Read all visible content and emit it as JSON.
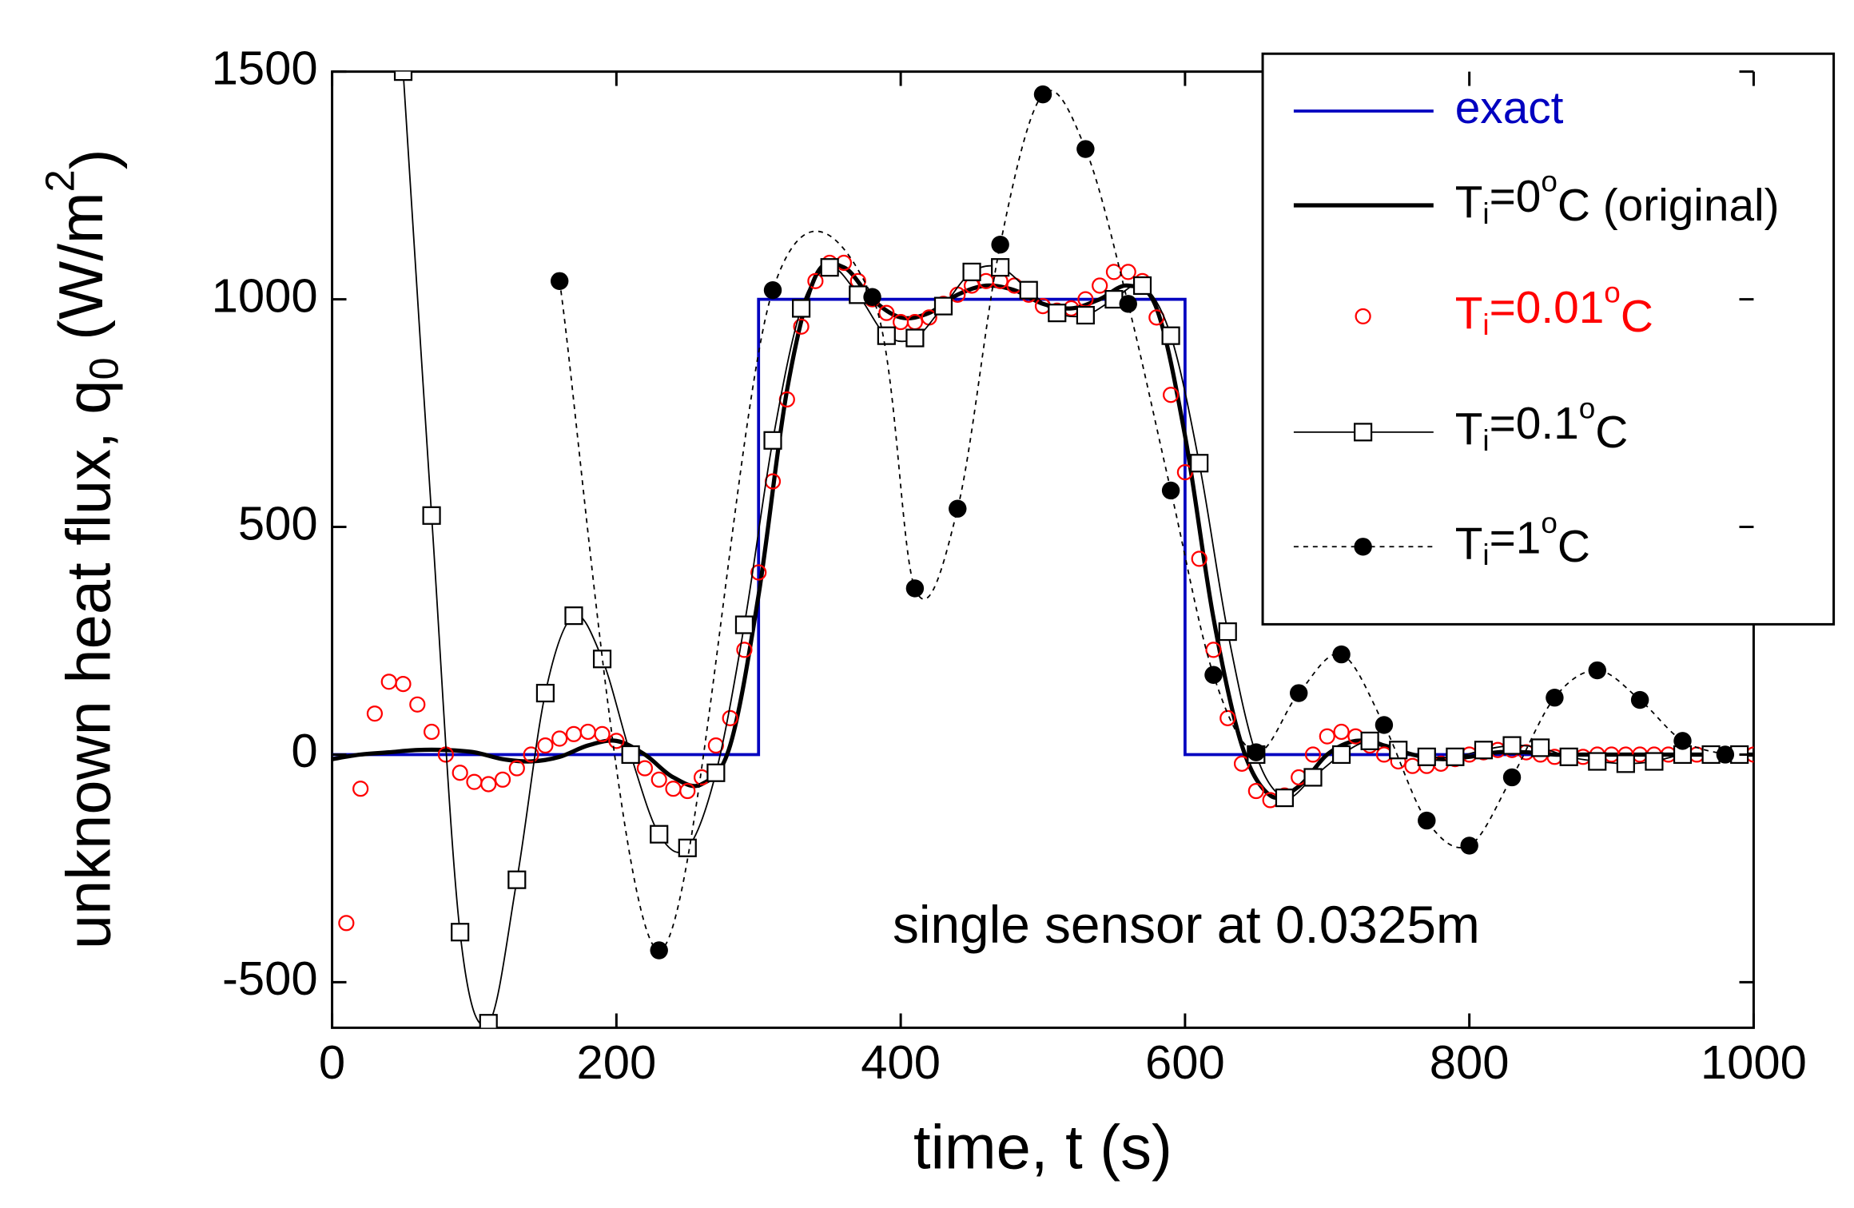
{
  "chart_data": {
    "type": "line",
    "xlabel": "time, t (s)",
    "ylabel": [
      "unknown heat flux, q",
      "0",
      " (W/m",
      "2",
      ")"
    ],
    "annotation": "single sensor  at 0.0325m",
    "xlim": [
      0,
      1000
    ],
    "xticks": [
      0,
      200,
      400,
      600,
      800,
      1000
    ],
    "ylim": [
      -600,
      1500
    ],
    "yticks": [
      -500,
      0,
      500,
      1000,
      1500
    ],
    "legend": "upper right",
    "series": [
      {
        "name": [
          "exact"
        ],
        "color": "#0000c0",
        "style": "step",
        "x": [
          0,
          300,
          300,
          600,
          600,
          1000
        ],
        "values": [
          0,
          0,
          1000,
          1000,
          0,
          0
        ]
      },
      {
        "name": [
          "T",
          "i",
          "=0",
          "o",
          "C (original)"
        ],
        "color": "#000000",
        "style": "thick",
        "x": [
          0,
          20,
          40,
          60,
          80,
          100,
          120,
          140,
          160,
          180,
          200,
          220,
          240,
          260,
          280,
          300,
          320,
          340,
          360,
          380,
          400,
          420,
          440,
          460,
          480,
          500,
          520,
          540,
          560,
          580,
          600,
          620,
          640,
          660,
          680,
          700,
          720,
          740,
          760,
          780,
          800,
          820,
          840,
          860,
          880,
          900,
          1000
        ],
        "values": [
          -10,
          0,
          5,
          10,
          10,
          5,
          -10,
          -15,
          -5,
          20,
          30,
          0,
          -50,
          -65,
          20,
          350,
          800,
          1050,
          1070,
          1000,
          960,
          970,
          1010,
          1030,
          1020,
          990,
          980,
          1000,
          1030,
          980,
          700,
          300,
          20,
          -90,
          -70,
          0,
          30,
          20,
          0,
          -10,
          -5,
          5,
          5,
          0,
          0,
          0,
          0
        ]
      },
      {
        "name": [
          "T",
          "i",
          "=0.01",
          "o",
          "C"
        ],
        "color": "#ff0000",
        "style": "circle",
        "x": [
          10,
          20,
          30,
          40,
          50,
          60,
          70,
          80,
          90,
          100,
          110,
          120,
          130,
          140,
          150,
          160,
          170,
          180,
          190,
          200,
          210,
          220,
          230,
          240,
          250,
          260,
          270,
          280,
          290,
          300,
          310,
          320,
          330,
          340,
          350,
          360,
          370,
          380,
          390,
          400,
          410,
          420,
          430,
          440,
          450,
          460,
          470,
          480,
          490,
          500,
          510,
          520,
          530,
          540,
          550,
          560,
          570,
          580,
          590,
          600,
          610,
          620,
          630,
          640,
          650,
          660,
          670,
          680,
          690,
          700,
          710,
          720,
          730,
          740,
          750,
          760,
          770,
          780,
          790,
          800,
          810,
          820,
          830,
          840,
          850,
          860,
          870,
          880,
          890,
          900,
          910,
          920,
          930,
          940,
          950,
          960,
          970,
          980,
          990,
          1000
        ],
        "values": [
          -370,
          -75,
          90,
          160,
          155,
          110,
          50,
          0,
          -40,
          -60,
          -65,
          -55,
          -30,
          0,
          20,
          35,
          45,
          50,
          45,
          30,
          0,
          -30,
          -55,
          -75,
          -80,
          -50,
          20,
          80,
          230,
          400,
          600,
          780,
          940,
          1040,
          1080,
          1080,
          1040,
          1000,
          970,
          950,
          950,
          960,
          990,
          1010,
          1030,
          1040,
          1040,
          1030,
          1010,
          985,
          975,
          980,
          1000,
          1030,
          1060,
          1060,
          1040,
          960,
          790,
          620,
          430,
          230,
          80,
          -20,
          -80,
          -100,
          -90,
          -50,
          0,
          40,
          50,
          40,
          20,
          0,
          -15,
          -25,
          -25,
          -20,
          -10,
          0,
          5,
          10,
          10,
          5,
          0,
          -5,
          -5,
          -5,
          0,
          0,
          0,
          0,
          0,
          0,
          0,
          0,
          0,
          0,
          0,
          0
        ]
      },
      {
        "name": [
          "T",
          "i",
          "=0.1",
          "o",
          "C"
        ],
        "color": "#000000",
        "style": "square",
        "x": [
          50,
          70,
          90,
          110,
          130,
          150,
          170,
          190,
          210,
          230,
          250,
          270,
          290,
          310,
          330,
          350,
          370,
          390,
          410,
          430,
          450,
          470,
          490,
          510,
          530,
          550,
          570,
          590,
          610,
          630,
          650,
          670,
          690,
          710,
          730,
          750,
          770,
          790,
          810,
          830,
          850,
          870,
          890,
          910,
          930,
          950,
          970,
          990
        ],
        "values": [
          1500,
          525,
          -390,
          -590,
          -275,
          135,
          305,
          210,
          0,
          -175,
          -205,
          -40,
          285,
          690,
          980,
          1070,
          1010,
          920,
          915,
          985,
          1060,
          1070,
          1020,
          970,
          965,
          1000,
          1030,
          920,
          640,
          270,
          0,
          -95,
          -50,
          0,
          30,
          10,
          -5,
          -5,
          10,
          20,
          15,
          -5,
          -15,
          -20,
          -15,
          0,
          0,
          0
        ]
      },
      {
        "name": [
          "T",
          "i",
          "=1",
          "o",
          "C"
        ],
        "color": "#000000",
        "style": "dot",
        "x": [
          160,
          230,
          310,
          380,
          410,
          440,
          470,
          500,
          530,
          560,
          590,
          620,
          650,
          680,
          710,
          740,
          770,
          800,
          830,
          860,
          890,
          920,
          950,
          980
        ],
        "values": [
          1040,
          -430,
          1020,
          1005,
          365,
          540,
          1120,
          1450,
          1330,
          990,
          580,
          175,
          5,
          135,
          220,
          65,
          -145,
          -200,
          -50,
          125,
          185,
          120,
          30,
          0
        ]
      }
    ]
  }
}
